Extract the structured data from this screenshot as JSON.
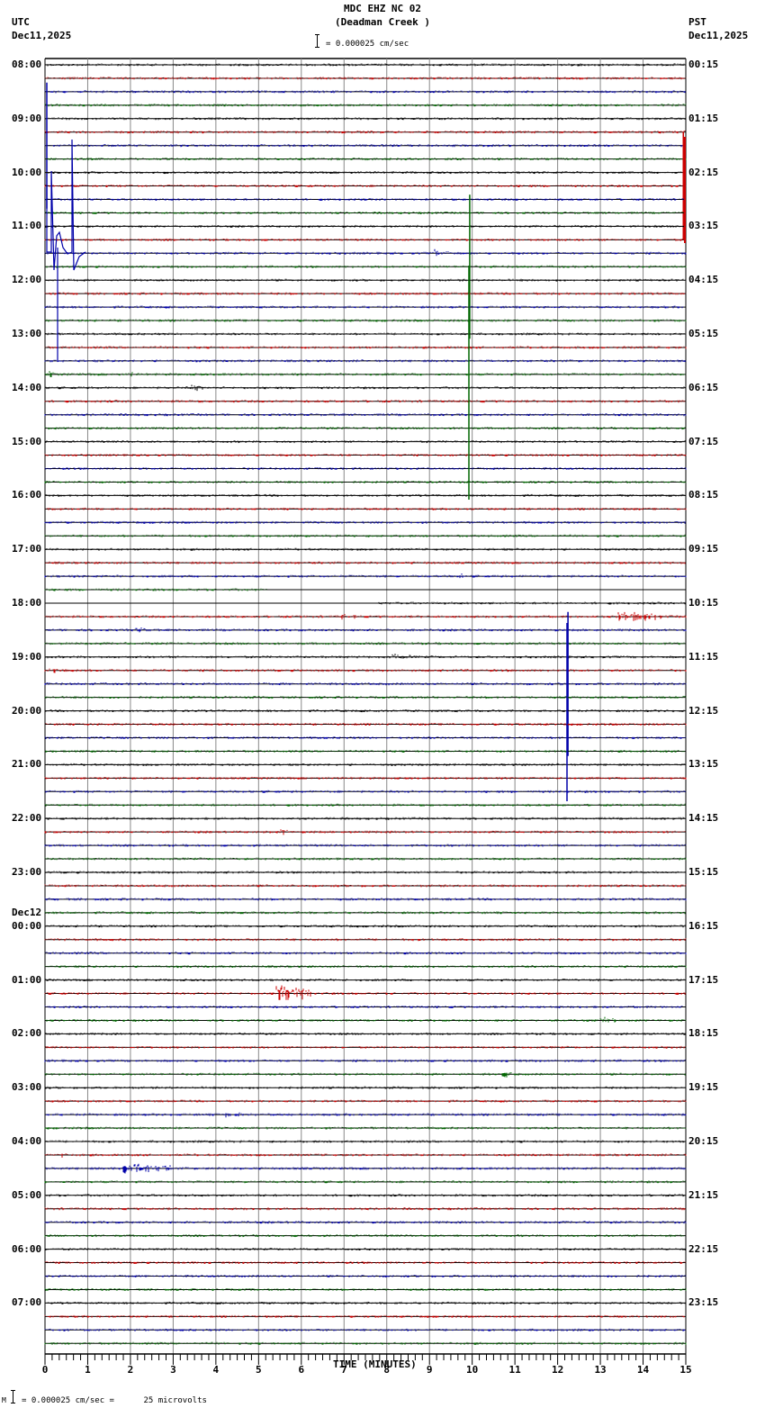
{
  "header": {
    "station_line": "MDC EHZ NC 02",
    "station_name": "(Deadman Creek )",
    "left_tz": "UTC",
    "left_date": "Dec11,2025",
    "right_tz": "PST",
    "right_date": "Dec11,2025",
    "scale_text": "= 0.000025 cm/sec"
  },
  "footer": {
    "scale_text": "= 0.000025 cm/sec =      25 microvolts",
    "prefix": "M"
  },
  "chart_data": {
    "type": "line",
    "title": "MDC EHZ NC 02 (Deadman Creek ) helicorder",
    "xlabel": "TIME (MINUTES)",
    "ylabel": "",
    "xlim": [
      0,
      15
    ],
    "x_ticks": [
      "0",
      "1",
      "2",
      "3",
      "4",
      "5",
      "6",
      "7",
      "8",
      "9",
      "10",
      "11",
      "12",
      "13",
      "14",
      "15"
    ],
    "minor_ticks_per_minute": 6,
    "grid": "vertical lines every 1 minute",
    "rows_per_hour": 4,
    "row_minutes": 15,
    "num_rows": 96,
    "trace_colors": [
      "#000000",
      "#cc0000",
      "#0000aa",
      "#006600"
    ],
    "left_labels_utc": [
      "08:00",
      "09:00",
      "10:00",
      "11:00",
      "12:00",
      "13:00",
      "14:00",
      "15:00",
      "16:00",
      "17:00",
      "18:00",
      "19:00",
      "20:00",
      "21:00",
      "22:00",
      "23:00",
      "00:00",
      "01:00",
      "02:00",
      "03:00",
      "04:00",
      "05:00",
      "06:00",
      "07:00"
    ],
    "date_change_label": {
      "text": "Dec12",
      "before_hour": "00:00"
    },
    "right_labels_pst": [
      "00:15",
      "01:15",
      "02:15",
      "03:15",
      "04:15",
      "05:15",
      "06:15",
      "07:15",
      "08:15",
      "09:15",
      "10:15",
      "11:15",
      "12:15",
      "13:15",
      "14:15",
      "15:15",
      "16:15",
      "17:15",
      "18:15",
      "19:15",
      "20:15",
      "21:15",
      "22:15",
      "23:15"
    ],
    "scale": "0.000025 cm/sec = 25 microvolts",
    "events": [
      {
        "row": 6,
        "start_min": 0.0,
        "end_min": 1.2,
        "amp": 70,
        "type": "spike",
        "note": "large transients 09:30-13:30 near 0.1-0.7 min"
      },
      {
        "row": 9,
        "start_min": 14.9,
        "end_min": 15.0,
        "amp": 60,
        "type": "spike"
      },
      {
        "row": 14,
        "start_min": 9.1,
        "end_min": 9.6,
        "amp": 6,
        "type": "burst"
      },
      {
        "row": 15,
        "start_min": 9.9,
        "end_min": 10.0,
        "amp": 80,
        "type": "spike",
        "note": "large green spike 11:45-16:00 near 9.95 min"
      },
      {
        "row": 23,
        "start_min": 0.1,
        "end_min": 0.2,
        "amp": 5,
        "type": "burst"
      },
      {
        "row": 23,
        "start_min": 2.0,
        "end_min": 2.1,
        "amp": 5,
        "type": "burst"
      },
      {
        "row": 24,
        "start_min": 3.4,
        "end_min": 3.8,
        "amp": 5,
        "type": "burst"
      },
      {
        "row": 38,
        "start_min": 9.7,
        "end_min": 9.8,
        "amp": 5,
        "type": "burst"
      },
      {
        "row": 39,
        "start_min": 5.2,
        "end_min": 15,
        "amp": 0,
        "type": "gap"
      },
      {
        "row": 40,
        "start_min": 0,
        "end_min": 7.8,
        "amp": 0,
        "type": "gap"
      },
      {
        "row": 41,
        "start_min": 13.4,
        "end_min": 14.5,
        "amp": 8,
        "type": "burst"
      },
      {
        "row": 41,
        "start_min": 6.9,
        "end_min": 7.3,
        "amp": 4,
        "type": "burst"
      },
      {
        "row": 42,
        "start_min": 2.1,
        "end_min": 2.4,
        "amp": 4,
        "type": "burst"
      },
      {
        "row": 44,
        "start_min": 8.1,
        "end_min": 8.6,
        "amp": 5,
        "type": "burst"
      },
      {
        "row": 45,
        "start_min": 0.1,
        "end_min": 0.5,
        "amp": 4,
        "type": "burst"
      },
      {
        "row": 46,
        "start_min": 12.2,
        "end_min": 12.3,
        "amp": 80,
        "type": "spike",
        "note": "blue spike 18:30-21:30 at ~12.2 min"
      },
      {
        "row": 57,
        "start_min": 5.5,
        "end_min": 5.7,
        "amp": 5,
        "type": "burst"
      },
      {
        "row": 69,
        "start_min": 5.4,
        "end_min": 6.3,
        "amp": 16,
        "type": "burst",
        "note": "red quake 01:15"
      },
      {
        "row": 71,
        "start_min": 12.9,
        "end_min": 13.6,
        "amp": 5,
        "type": "burst"
      },
      {
        "row": 75,
        "start_min": 10.7,
        "end_min": 11.0,
        "amp": 8,
        "type": "burst"
      },
      {
        "row": 78,
        "start_min": 4.2,
        "end_min": 4.7,
        "amp": 4,
        "type": "burst"
      },
      {
        "row": 81,
        "start_min": 0.4,
        "end_min": 0.5,
        "amp": 4,
        "type": "burst"
      },
      {
        "row": 82,
        "start_min": 1.8,
        "end_min": 3.0,
        "amp": 10,
        "type": "burst",
        "note": "blue quake 04:30"
      }
    ]
  }
}
